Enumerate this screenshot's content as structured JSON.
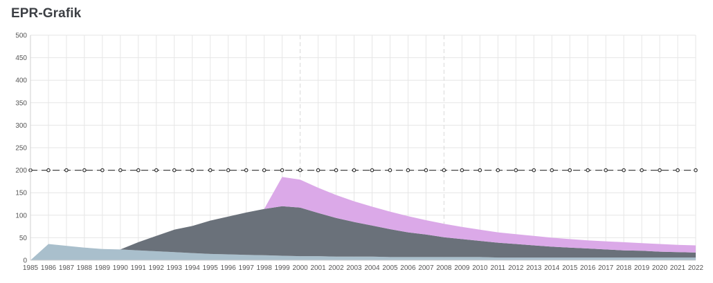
{
  "header": {
    "title": "EPR-Grafik"
  },
  "chart_data": {
    "type": "area",
    "stacked": true,
    "x": [
      1985,
      1986,
      1987,
      1988,
      1989,
      1990,
      1991,
      1992,
      1993,
      1994,
      1995,
      1996,
      1997,
      1998,
      1999,
      2000,
      2001,
      2002,
      2003,
      2004,
      2005,
      2006,
      2007,
      2008,
      2009,
      2010,
      2011,
      2012,
      2013,
      2014,
      2015,
      2016,
      2017,
      2018,
      2019,
      2020,
      2021,
      2022
    ],
    "ylim": [
      0,
      500
    ],
    "yticks": [
      0,
      50,
      100,
      150,
      200,
      250,
      300,
      350,
      400,
      450,
      500
    ],
    "grid": true,
    "series": [
      {
        "color": "#a9bfcc",
        "values": [
          0,
          36,
          32,
          28,
          25,
          24,
          22,
          20,
          18,
          16,
          14,
          13,
          12,
          11,
          10,
          9,
          9,
          8,
          8,
          8,
          7,
          7,
          7,
          7,
          7,
          7,
          6,
          6,
          6,
          6,
          6,
          6,
          6,
          6,
          6,
          6,
          6,
          6
        ]
      },
      {
        "color": "#6a717a",
        "values": [
          0,
          0,
          0,
          0,
          0,
          0,
          18,
          34,
          50,
          60,
          74,
          84,
          94,
          103,
          110,
          108,
          96,
          86,
          77,
          69,
          62,
          55,
          50,
          44,
          40,
          36,
          33,
          30,
          27,
          24,
          22,
          20,
          18,
          16,
          15,
          13,
          12,
          11
        ]
      },
      {
        "color": "#dba9e8",
        "values": [
          0,
          0,
          0,
          0,
          0,
          0,
          0,
          0,
          0,
          0,
          0,
          0,
          0,
          0,
          65,
          62,
          56,
          51,
          46,
          42,
          39,
          36,
          32,
          30,
          27,
          25,
          23,
          22,
          21,
          20,
          19,
          18,
          18,
          18,
          17,
          17,
          16,
          16
        ]
      }
    ],
    "reference_line": {
      "value": 200,
      "color": "#444444",
      "style": "dashed-with-markers"
    }
  }
}
